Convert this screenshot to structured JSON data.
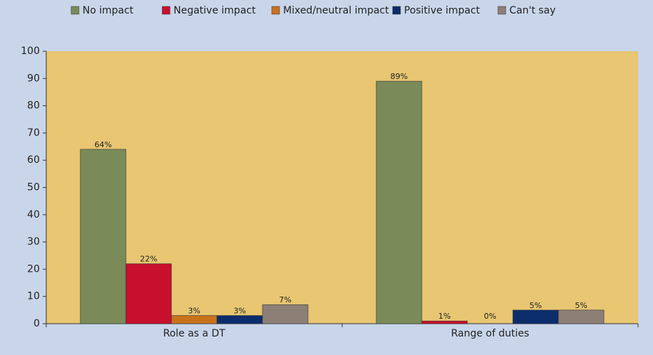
{
  "chart_data": {
    "type": "bar",
    "categories": [
      "Role as a DT",
      "Range of duties"
    ],
    "series": [
      {
        "name": "No impact",
        "color": "#7a8b59",
        "values": [
          64,
          89
        ],
        "value_labels": [
          "64%",
          "89%"
        ]
      },
      {
        "name": "Negative impact",
        "color": "#c8102e",
        "values": [
          22,
          1
        ],
        "value_labels": [
          "22%",
          "1%"
        ]
      },
      {
        "name": "Mixed/neutral impact",
        "color": "#c8731c",
        "values": [
          3,
          0
        ],
        "value_labels": [
          "3%",
          "0%"
        ]
      },
      {
        "name": "Positive impact",
        "color": "#0b2d6b",
        "values": [
          3,
          5
        ],
        "value_labels": [
          "3%",
          "5%"
        ]
      },
      {
        "name": "Can't say",
        "color": "#8c7f76",
        "values": [
          7,
          5
        ],
        "value_labels": [
          "7%",
          "5%"
        ]
      }
    ],
    "ylim": [
      0,
      100
    ],
    "yticks": [
      0,
      10,
      20,
      30,
      40,
      50,
      60,
      70,
      80,
      90,
      100
    ],
    "legend": "top",
    "grid": false
  }
}
